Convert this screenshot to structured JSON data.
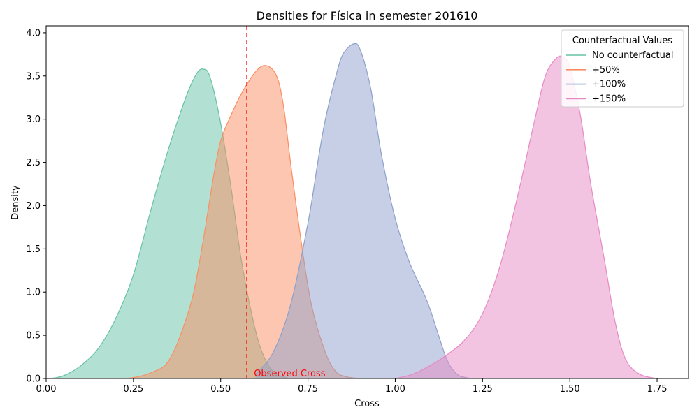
{
  "chart_data": {
    "type": "area",
    "title": "Densities for Física in semester 201610",
    "xlabel": "Cross",
    "ylabel": "Density",
    "xlim": [
      0.0,
      1.84
    ],
    "ylim": [
      0.0,
      4.08
    ],
    "xticks": [
      0.0,
      0.25,
      0.5,
      0.75,
      1.0,
      1.25,
      1.5,
      1.75
    ],
    "xtick_labels": [
      "0.00",
      "0.25",
      "0.50",
      "0.75",
      "1.00",
      "1.25",
      "1.50",
      "1.75"
    ],
    "yticks": [
      0.0,
      0.5,
      1.0,
      1.5,
      2.0,
      2.5,
      3.0,
      3.5,
      4.0
    ],
    "ytick_labels": [
      "0.0",
      "0.5",
      "1.0",
      "1.5",
      "2.0",
      "2.5",
      "3.0",
      "3.5",
      "4.0"
    ],
    "grid": false,
    "legend": {
      "title": "Counterfactual Values",
      "placement": "top-right"
    },
    "reference_line": {
      "x": 0.575,
      "label": "Observed Cross",
      "color": "#ff0000",
      "style": "dashed"
    },
    "series": [
      {
        "name": "No counterfactual",
        "color": "#66c2a5",
        "x": [
          0.0,
          0.03,
          0.06,
          0.1,
          0.15,
          0.2,
          0.25,
          0.3,
          0.35,
          0.4,
          0.43,
          0.45,
          0.47,
          0.5,
          0.53,
          0.56,
          0.6,
          0.63,
          0.66,
          0.7
        ],
        "y": [
          0.0,
          0.01,
          0.05,
          0.15,
          0.35,
          0.7,
          1.2,
          1.95,
          2.65,
          3.25,
          3.52,
          3.58,
          3.48,
          2.95,
          2.2,
          1.35,
          0.55,
          0.2,
          0.05,
          0.0
        ]
      },
      {
        "name": "+50%",
        "color": "#fc8d62",
        "x": [
          0.15,
          0.25,
          0.32,
          0.35,
          0.38,
          0.42,
          0.45,
          0.48,
          0.5,
          0.53,
          0.56,
          0.6,
          0.63,
          0.66,
          0.68,
          0.7,
          0.73,
          0.76,
          0.8,
          0.83,
          0.86,
          0.9
        ],
        "y": [
          0.0,
          0.01,
          0.1,
          0.2,
          0.45,
          0.95,
          1.6,
          2.35,
          2.75,
          3.05,
          3.3,
          3.55,
          3.62,
          3.5,
          3.15,
          2.5,
          1.6,
          0.85,
          0.3,
          0.08,
          0.02,
          0.0
        ]
      },
      {
        "name": "+100%",
        "color": "#8da0cb",
        "x": [
          0.6,
          0.65,
          0.7,
          0.75,
          0.78,
          0.8,
          0.83,
          0.85,
          0.88,
          0.9,
          0.93,
          0.96,
          1.0,
          1.04,
          1.08,
          1.1,
          1.12,
          1.15,
          1.18,
          1.22
        ],
        "y": [
          0.05,
          0.3,
          0.85,
          1.8,
          2.55,
          3.0,
          3.5,
          3.75,
          3.87,
          3.8,
          3.35,
          2.6,
          1.85,
          1.35,
          1.0,
          0.8,
          0.55,
          0.2,
          0.04,
          0.0
        ]
      },
      {
        "name": "+150%",
        "color": "#e78ac3",
        "x": [
          1.0,
          1.05,
          1.1,
          1.15,
          1.2,
          1.25,
          1.3,
          1.35,
          1.4,
          1.43,
          1.46,
          1.48,
          1.5,
          1.53,
          1.56,
          1.6,
          1.63,
          1.66,
          1.7,
          1.75
        ],
        "y": [
          0.0,
          0.05,
          0.15,
          0.28,
          0.45,
          0.75,
          1.3,
          2.1,
          3.0,
          3.5,
          3.7,
          3.72,
          3.6,
          3.05,
          2.25,
          1.35,
          0.65,
          0.22,
          0.05,
          0.0
        ]
      }
    ]
  }
}
